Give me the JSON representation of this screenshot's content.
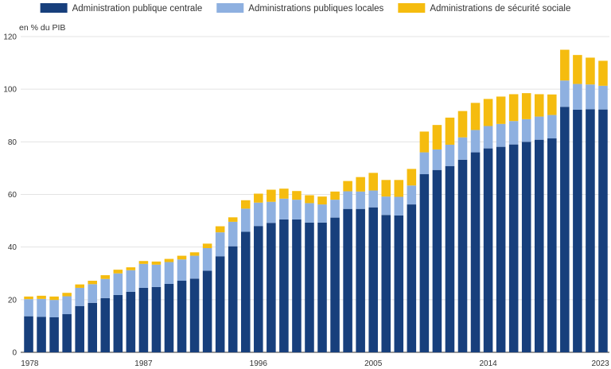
{
  "chart_data": {
    "type": "bar",
    "stacked": true,
    "ylabel": "en % du PIB",
    "ylim": [
      0,
      120
    ],
    "yticks": [
      0,
      20,
      40,
      60,
      80,
      100,
      120
    ],
    "grid": true,
    "legend_placement": "top-center",
    "categories": [
      "1978",
      "1979",
      "1980",
      "1981",
      "1982",
      "1983",
      "1984",
      "1985",
      "1986",
      "1987",
      "1988",
      "1989",
      "1990",
      "1991",
      "1992",
      "1993",
      "1994",
      "1995",
      "1996",
      "1997",
      "1998",
      "1999",
      "2000",
      "2001",
      "2002",
      "2003",
      "2004",
      "2005",
      "2006",
      "2007",
      "2008",
      "2009",
      "2010",
      "2011",
      "2012",
      "2013",
      "2014",
      "2015",
      "2016",
      "2017",
      "2018",
      "2019",
      "2020",
      "2021",
      "2022",
      "2023"
    ],
    "xtick_labels": [
      "1978",
      "1987",
      "1996",
      "2005",
      "2014",
      "2023"
    ],
    "series": [
      {
        "name": "Administration publique centrale",
        "color": "#173f7c",
        "values": [
          13.7,
          13.5,
          13.3,
          14.5,
          17.6,
          18.8,
          20.6,
          21.8,
          23.0,
          24.5,
          24.8,
          26.0,
          27.2,
          28.0,
          31.0,
          36.5,
          40.3,
          45.8,
          48.0,
          49.2,
          50.5,
          50.5,
          49.3,
          49.3,
          51.2,
          54.5,
          54.5,
          55.1,
          52.2,
          52.0,
          56.2,
          67.7,
          69.3,
          70.8,
          73.2,
          76.0,
          77.5,
          78.1,
          79.0,
          80.0,
          80.8,
          81.3,
          93.3,
          92.2,
          92.4,
          92.3
        ]
      },
      {
        "name": "Administrations publiques locales",
        "color": "#8eb0e0",
        "values": [
          6.5,
          6.8,
          6.6,
          6.8,
          6.9,
          7.1,
          7.3,
          8.2,
          8.2,
          9.1,
          8.5,
          8.3,
          8.1,
          8.7,
          8.6,
          9.1,
          9.3,
          8.8,
          8.9,
          8.0,
          7.9,
          7.5,
          7.4,
          6.9,
          6.8,
          6.7,
          6.6,
          6.4,
          7.0,
          7.1,
          7.2,
          8.3,
          7.8,
          8.1,
          8.5,
          8.5,
          8.5,
          8.7,
          8.9,
          8.6,
          8.8,
          8.9,
          10.0,
          9.8,
          9.4,
          9.0
        ]
      },
      {
        "name": "Administrations de sécurité sociale",
        "color": "#f5bc0f",
        "values": [
          1.0,
          1.2,
          1.3,
          1.3,
          1.3,
          1.3,
          1.4,
          1.4,
          1.1,
          1.1,
          1.2,
          1.2,
          1.4,
          1.3,
          1.7,
          2.3,
          1.7,
          3.2,
          3.4,
          4.6,
          3.8,
          3.3,
          3.0,
          3.0,
          3.1,
          3.9,
          5.5,
          6.7,
          6.3,
          6.4,
          6.3,
          7.9,
          9.3,
          10.3,
          10.0,
          10.3,
          10.3,
          10.4,
          10.2,
          9.9,
          8.5,
          7.8,
          11.7,
          11.0,
          10.2,
          9.5
        ]
      }
    ]
  }
}
